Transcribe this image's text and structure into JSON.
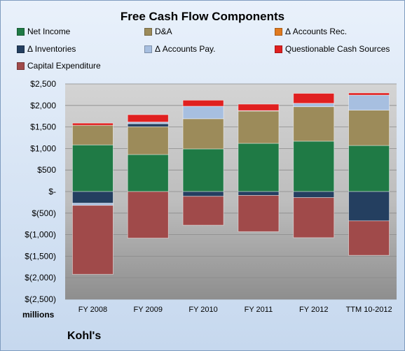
{
  "chart_data": {
    "type": "bar",
    "stacked": true,
    "title": "Free Cash Flow Components",
    "units_label": "millions",
    "company": "Kohl's",
    "categories": [
      "FY 2008",
      "FY 2009",
      "FY 2010",
      "FY 2011",
      "FY 2012",
      "TTM 10-2012"
    ],
    "ylim": [
      -2500,
      2500
    ],
    "yticks": [
      -2500,
      -2000,
      -1500,
      -1000,
      -500,
      0,
      500,
      1000,
      1500,
      2000,
      2500
    ],
    "ytick_labels": [
      "$(2,500)",
      "$(2,000)",
      "$(1,500)",
      "$(1,000)",
      "$(500)",
      "$-",
      "$500",
      "$1,000",
      "$1,500",
      "$2,000",
      "$2,500"
    ],
    "grid": true,
    "legend_position": "top",
    "series": [
      {
        "name": "Net Income",
        "color": "#1f7a45",
        "values": [
          1084,
          860,
          991,
          1120,
          1170,
          1070
        ]
      },
      {
        "name": "D&A",
        "color": "#9c8b5a",
        "values": [
          455,
          645,
          700,
          750,
          800,
          820
        ]
      },
      {
        "name": "Δ Accounts Rec.",
        "color": "#e07a1f",
        "values": [
          0,
          0,
          0,
          0,
          0,
          0
        ]
      },
      {
        "name": "Δ Inventories",
        "color": "#243f60",
        "values": [
          -270,
          70,
          -110,
          -90,
          -140,
          -680
        ]
      },
      {
        "name": "Δ Accounts Pay.",
        "color": "#a7bfe0",
        "values": [
          -50,
          40,
          290,
          10,
          80,
          350
        ]
      },
      {
        "name": "Questionable Cash Sources",
        "color": "#e02020",
        "values": [
          50,
          170,
          140,
          150,
          230,
          50
        ]
      },
      {
        "name": "Capital Expenditure",
        "color": "#a04a4a",
        "values": [
          -1600,
          -1080,
          -670,
          -840,
          -930,
          -800
        ]
      }
    ]
  }
}
